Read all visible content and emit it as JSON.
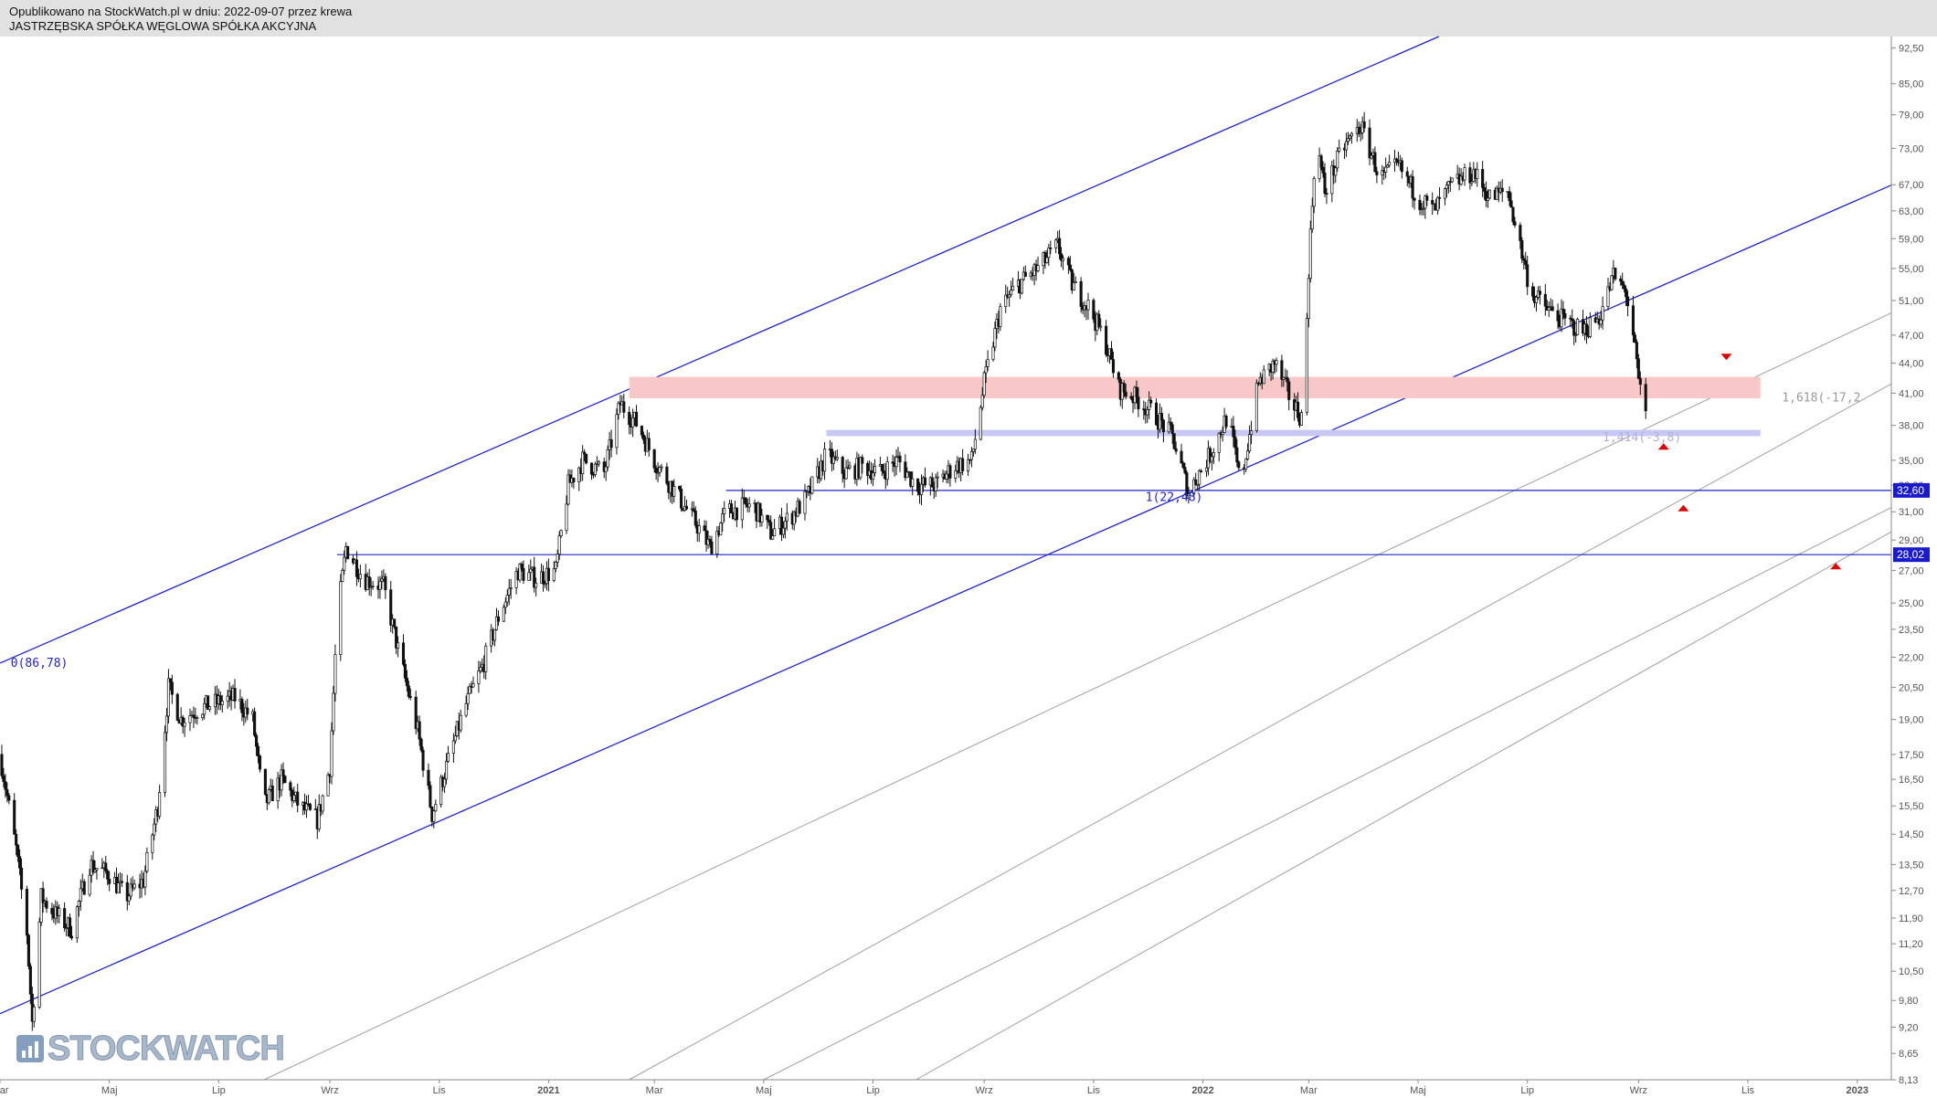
{
  "header": {
    "published": "Opublikowano na StockWatch.pl w dniu: 2022-09-07 przez krewa",
    "instrument": "JASTRZĘBSKA SPÓŁKA WĘGLOWA SPÓŁKA AKCYJNA"
  },
  "logo": {
    "text": "STOCKWATCH"
  },
  "colors": {
    "candle": "#111111",
    "channel": "#2222cc",
    "fib_line": "#a0a0a0",
    "resistance_zone": "#f8c8c8",
    "support_zone": "#c8c8f5",
    "price_label_bg": "#1a1acc",
    "arrow": "#dd0000",
    "header_bg": "#e1e1e1"
  },
  "chart_data": {
    "type": "candlestick",
    "scale": "log",
    "ylim": [
      8.13,
      95.0
    ],
    "xlim": [
      "2020-03-01",
      "2023-01-20"
    ],
    "y_ticks": [
      "92,50",
      "85,00",
      "79,00",
      "73,00",
      "67,00",
      "63,00",
      "59,00",
      "55,00",
      "51,00",
      "47,00",
      "44,00",
      "41,00",
      "38,00",
      "35,00",
      "33,00",
      "31,00",
      "29,00",
      "27,00",
      "25,00",
      "23,50",
      "22,00",
      "20,50",
      "19,00",
      "17,50",
      "16,50",
      "15,50",
      "14,50",
      "13,50",
      "12,70",
      "11,90",
      "11,20",
      "10,50",
      "9,80",
      "9,20",
      "8,65",
      "8,13"
    ],
    "x_ticks": [
      {
        "label": "Mar",
        "date": "2020-03-01"
      },
      {
        "label": "Maj",
        "date": "2020-05-01"
      },
      {
        "label": "Lip",
        "date": "2020-07-01"
      },
      {
        "label": "Wrz",
        "date": "2020-09-01"
      },
      {
        "label": "Lis",
        "date": "2020-11-01"
      },
      {
        "label": "2021",
        "date": "2021-01-01",
        "bold": true
      },
      {
        "label": "Mar",
        "date": "2021-03-01"
      },
      {
        "label": "Maj",
        "date": "2021-05-01"
      },
      {
        "label": "Lip",
        "date": "2021-07-01"
      },
      {
        "label": "Wrz",
        "date": "2021-09-01"
      },
      {
        "label": "Lis",
        "date": "2021-11-01"
      },
      {
        "label": "2022",
        "date": "2022-01-01",
        "bold": true
      },
      {
        "label": "Mar",
        "date": "2022-03-01"
      },
      {
        "label": "Maj",
        "date": "2022-05-01"
      },
      {
        "label": "Lip",
        "date": "2022-07-01"
      },
      {
        "label": "Wrz",
        "date": "2022-09-01"
      },
      {
        "label": "Lis",
        "date": "2022-11-01"
      },
      {
        "label": "2023",
        "date": "2023-01-01",
        "bold": true
      }
    ],
    "price_path": [
      [
        "2020-03-01",
        17.5
      ],
      [
        "2020-03-10",
        14.0
      ],
      [
        "2020-03-16",
        11.5
      ],
      [
        "2020-03-19",
        9.3
      ],
      [
        "2020-03-24",
        12.5
      ],
      [
        "2020-04-01",
        12.0
      ],
      [
        "2020-04-10",
        11.6
      ],
      [
        "2020-04-20",
        13.5
      ],
      [
        "2020-05-01",
        13.2
      ],
      [
        "2020-05-10",
        12.5
      ],
      [
        "2020-05-20",
        13.0
      ],
      [
        "2020-05-28",
        15.5
      ],
      [
        "2020-06-03",
        20.5
      ],
      [
        "2020-06-10",
        19.0
      ],
      [
        "2020-06-20",
        19.5
      ],
      [
        "2020-07-01",
        19.8
      ],
      [
        "2020-07-10",
        20.0
      ],
      [
        "2020-07-20",
        19.0
      ],
      [
        "2020-07-26",
        15.5
      ],
      [
        "2020-08-05",
        16.5
      ],
      [
        "2020-08-15",
        15.5
      ],
      [
        "2020-08-25",
        15.0
      ],
      [
        "2020-09-01",
        17.0
      ],
      [
        "2020-09-05",
        24.0
      ],
      [
        "2020-09-10",
        28.5
      ],
      [
        "2020-09-20",
        26.5
      ],
      [
        "2020-10-01",
        26.0
      ],
      [
        "2020-10-10",
        22.0
      ],
      [
        "2020-10-20",
        18.5
      ],
      [
        "2020-10-28",
        15.2
      ],
      [
        "2020-11-05",
        17.0
      ],
      [
        "2020-11-15",
        19.5
      ],
      [
        "2020-11-25",
        21.5
      ],
      [
        "2020-12-05",
        24.5
      ],
      [
        "2020-12-15",
        27.0
      ],
      [
        "2020-12-25",
        26.5
      ],
      [
        "2021-01-05",
        27.0
      ],
      [
        "2021-01-12",
        33.0
      ],
      [
        "2021-01-20",
        35.0
      ],
      [
        "2021-02-01",
        34.0
      ],
      [
        "2021-02-10",
        40.0
      ],
      [
        "2021-02-20",
        38.0
      ],
      [
        "2021-03-01",
        35.0
      ],
      [
        "2021-03-15",
        32.0
      ],
      [
        "2021-03-25",
        30.0
      ],
      [
        "2021-04-01",
        28.5
      ],
      [
        "2021-04-10",
        31.0
      ],
      [
        "2021-04-25",
        31.5
      ],
      [
        "2021-05-05",
        29.5
      ],
      [
        "2021-05-15",
        30.5
      ],
      [
        "2021-05-25",
        32.0
      ],
      [
        "2021-06-05",
        35.5
      ],
      [
        "2021-06-15",
        34.0
      ],
      [
        "2021-06-25",
        34.5
      ],
      [
        "2021-07-05",
        34.0
      ],
      [
        "2021-07-15",
        35.0
      ],
      [
        "2021-07-25",
        33.0
      ],
      [
        "2021-08-05",
        33.0
      ],
      [
        "2021-08-15",
        34.5
      ],
      [
        "2021-08-25",
        35.0
      ],
      [
        "2021-09-01",
        42.0
      ],
      [
        "2021-09-10",
        50.0
      ],
      [
        "2021-09-20",
        53.0
      ],
      [
        "2021-10-01",
        55.0
      ],
      [
        "2021-10-12",
        58.0
      ],
      [
        "2021-10-20",
        53.0
      ],
      [
        "2021-10-30",
        50.0
      ],
      [
        "2021-11-08",
        46.0
      ],
      [
        "2021-11-15",
        41.5
      ],
      [
        "2021-11-25",
        40.5
      ],
      [
        "2021-12-05",
        39.0
      ],
      [
        "2021-12-15",
        37.0
      ],
      [
        "2021-12-24",
        32.5
      ],
      [
        "2022-01-05",
        35.5
      ],
      [
        "2022-01-15",
        39.0
      ],
      [
        "2022-01-22",
        33.0
      ],
      [
        "2022-02-01",
        42.0
      ],
      [
        "2022-02-10",
        44.0
      ],
      [
        "2022-02-20",
        40.0
      ],
      [
        "2022-02-26",
        38.5
      ],
      [
        "2022-03-01",
        55.0
      ],
      [
        "2022-03-05",
        75.0
      ],
      [
        "2022-03-10",
        66.0
      ],
      [
        "2022-03-20",
        73.0
      ],
      [
        "2022-03-30",
        77.0
      ],
      [
        "2022-04-10",
        68.0
      ],
      [
        "2022-04-20",
        70.0
      ],
      [
        "2022-05-01",
        65.0
      ],
      [
        "2022-05-10",
        63.0
      ],
      [
        "2022-05-20",
        67.0
      ],
      [
        "2022-06-01",
        69.0
      ],
      [
        "2022-06-10",
        65.0
      ],
      [
        "2022-06-20",
        66.0
      ],
      [
        "2022-06-27",
        58.0
      ],
      [
        "2022-07-03",
        52.0
      ],
      [
        "2022-07-12",
        50.0
      ],
      [
        "2022-07-22",
        48.5
      ],
      [
        "2022-08-01",
        47.5
      ],
      [
        "2022-08-10",
        49.0
      ],
      [
        "2022-08-18",
        54.0
      ],
      [
        "2022-08-25",
        52.0
      ],
      [
        "2022-08-29",
        47.0
      ],
      [
        "2022-09-01",
        42.0
      ],
      [
        "2022-09-05",
        39.0
      ]
    ],
    "lines": [
      {
        "name": "channel-upper",
        "style": "channel",
        "points": [
          [
            "2020-03-01",
            21.7
          ],
          [
            "2022-04-01",
            88.0
          ]
        ]
      },
      {
        "name": "channel-lower",
        "style": "channel",
        "points": [
          [
            "2020-03-01",
            9.5
          ],
          [
            "2022-12-31",
            64.5
          ]
        ]
      },
      {
        "name": "fib-line-1",
        "style": "fib",
        "points": [
          [
            "2022-07-15",
            34.0
          ],
          [
            "2022-12-31",
            47.6
          ]
        ]
      },
      {
        "name": "fib-line-2",
        "style": "fib",
        "points": [
          [
            "2021-02-15",
            8.13
          ],
          [
            "2022-12-31",
            40.0
          ]
        ]
      },
      {
        "name": "fib-line-3",
        "style": "fib",
        "points": [
          [
            "2021-05-01",
            8.13
          ],
          [
            "2022-12-31",
            30.0
          ]
        ]
      },
      {
        "name": "fib-line-4",
        "style": "fib",
        "points": [
          [
            "2021-07-25",
            8.13
          ],
          [
            "2022-12-31",
            28.2
          ]
        ]
      }
    ],
    "horizontal_levels": [
      {
        "name": "level-32-60",
        "value": 32.6,
        "from": "2021-04-10",
        "label": "32,60"
      },
      {
        "name": "level-28-02",
        "value": 28.02,
        "from": "2020-09-05",
        "label": "28,02"
      }
    ],
    "zones": [
      {
        "name": "resistance-zone",
        "from": "2021-02-15",
        "to": "2022-11-08",
        "y1": 40.5,
        "y2": 42.6,
        "style": "resistance"
      },
      {
        "name": "support-zone",
        "from": "2021-06-05",
        "to": "2022-11-08",
        "y1": 37.05,
        "y2": 37.6,
        "style": "support"
      }
    ],
    "annotations": [
      {
        "name": "fib-0-label",
        "text": "0(86,78)",
        "date": "2020-03-07",
        "y": 21.5,
        "color": "#2222cc"
      },
      {
        "name": "fib-1-label",
        "text": "1(22,48)",
        "date": "2021-11-30",
        "y": 31.8,
        "color": "#2222cc"
      },
      {
        "name": "fib-1618-label",
        "text": "1,618(-17,2",
        "date": "2022-11-20",
        "y": 40.2,
        "color": "#999999"
      },
      {
        "name": "fib-14-label",
        "text": "1,414(-3,8)",
        "date": "2022-08-12",
        "y": 36.6,
        "color": "#b0b0d8"
      }
    ],
    "arrows": [
      {
        "name": "arrow-down-resistance",
        "date": "2022-10-20",
        "y": 44.6,
        "dir": "down"
      },
      {
        "name": "arrow-up-38",
        "date": "2022-09-15",
        "y": 36.2,
        "dir": "up"
      },
      {
        "name": "arrow-up-31",
        "date": "2022-09-26",
        "y": 31.3,
        "dir": "up"
      },
      {
        "name": "arrow-up-27",
        "date": "2022-12-20",
        "y": 27.3,
        "dir": "up"
      }
    ]
  }
}
